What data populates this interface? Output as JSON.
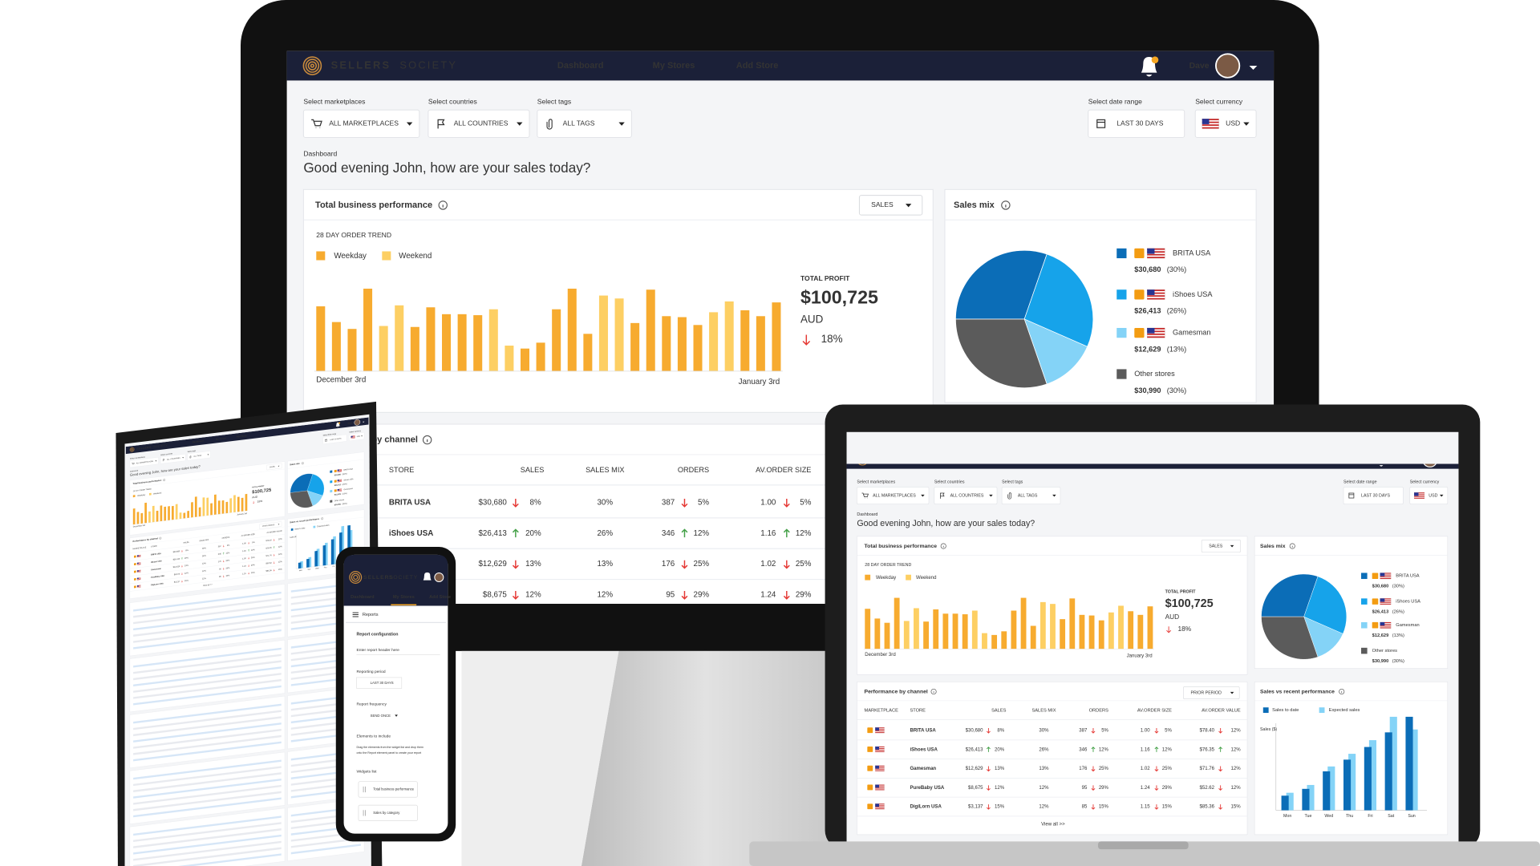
{
  "brand": {
    "name_bold": "SELLERS",
    "name_light": "SOCIETY"
  },
  "nav": {
    "items": [
      "Dashboard",
      "My Stores",
      "Add Store"
    ],
    "user": "Dave"
  },
  "filters": [
    {
      "label": "Select marketplaces",
      "value": "ALL MARKETPLACES"
    },
    {
      "label": "Select countries",
      "value": "ALL COUNTRIES"
    },
    {
      "label": "Select tags",
      "value": "ALL TAGS"
    },
    {
      "label": "Select date range",
      "value": "LAST 30 DAYS"
    },
    {
      "label": "Select currency",
      "value": "USD"
    }
  ],
  "breadcrumb": "Dashboard",
  "greeting": "Good evening John, how are your sales today?",
  "performance": {
    "title": "Total business performance",
    "metric": "SALES",
    "trend_title": "28 DAY ORDER TREND",
    "series": [
      {
        "name": "Weekday",
        "color": "#f7ab2f",
        "values": [
          66,
          50,
          43,
          84,
          null,
          null,
          45,
          65,
          58,
          58,
          57,
          null,
          null,
          23,
          29,
          63,
          84,
          38,
          null,
          null,
          49,
          83,
          56,
          55,
          47,
          null,
          null,
          62,
          56,
          70
        ]
      },
      {
        "name": "Weekend",
        "color": "#fdcf63",
        "values": [
          null,
          null,
          null,
          null,
          46,
          67,
          null,
          null,
          null,
          null,
          null,
          63,
          26,
          null,
          null,
          null,
          null,
          null,
          77,
          74,
          null,
          null,
          null,
          null,
          null,
          60,
          71,
          null,
          null,
          null
        ]
      }
    ],
    "start_label": "December 3rd",
    "end_label": "January 3rd",
    "profit_label": "TOTAL PROFIT",
    "profit": "$100,725",
    "currency": "AUD",
    "change": "18%",
    "trend": "down"
  },
  "sales_mix": {
    "title": "Sales mix",
    "items": [
      {
        "name": "BRITA USA",
        "amount": "$30,680",
        "share": 30,
        "share_label": "(30%)",
        "color": "#0b6db7",
        "marketplace": true
      },
      {
        "name": "iShoes USA",
        "amount": "$26,413",
        "share": 26,
        "share_label": "(26%)",
        "color": "#16a3ea",
        "marketplace": true
      },
      {
        "name": "Gamesman",
        "amount": "$12,629",
        "share": 13,
        "share_label": "(13%)",
        "color": "#84d3f7",
        "marketplace": true
      },
      {
        "name": "Other stores",
        "amount": "$30,990",
        "share": 30,
        "share_label": "(30%)",
        "color": "#5b5b5b",
        "marketplace": false
      }
    ]
  },
  "channel": {
    "title": "Performance by channel",
    "period": "PRIOR PERIOD",
    "columns": [
      "MARKETPLACE",
      "STORE",
      "SALES",
      "SALES MIX",
      "ORDERS",
      "AV.ORDER SIZE",
      "AV.ORDER VALUE"
    ],
    "rows": [
      {
        "store": "BRITA USA",
        "sales": {
          "text": "$30,680",
          "change": "8%",
          "trend": "down"
        },
        "mix": "30%",
        "orders": {
          "text": "387",
          "change": "5%",
          "trend": "down"
        },
        "size": {
          "text": "1.00",
          "change": "5%",
          "trend": "down"
        },
        "value": {
          "text": "$78.40",
          "change": "12%",
          "trend": "down"
        }
      },
      {
        "store": "iShoes USA",
        "sales": {
          "text": "$26,413",
          "change": "20%",
          "trend": "up"
        },
        "mix": "26%",
        "orders": {
          "text": "346",
          "change": "12%",
          "trend": "up"
        },
        "size": {
          "text": "1.16",
          "change": "12%",
          "trend": "up"
        },
        "value": {
          "text": "$76.35",
          "change": "12%",
          "trend": "up"
        }
      },
      {
        "store": "Gamesman",
        "sales": {
          "text": "$12,629",
          "change": "13%",
          "trend": "down"
        },
        "mix": "13%",
        "orders": {
          "text": "176",
          "change": "25%",
          "trend": "down"
        },
        "size": {
          "text": "1.02",
          "change": "25%",
          "trend": "down"
        },
        "value": {
          "text": "$71.76",
          "change": "12%",
          "trend": "down"
        }
      },
      {
        "store": "PureBaby USA",
        "sales": {
          "text": "$8,675",
          "change": "12%",
          "trend": "down"
        },
        "mix": "12%",
        "orders": {
          "text": "95",
          "change": "29%",
          "trend": "down"
        },
        "size": {
          "text": "1.24",
          "change": "29%",
          "trend": "down"
        },
        "value": {
          "text": "$52.62",
          "change": "12%",
          "trend": "down"
        }
      },
      {
        "store": "DigiLorn USA",
        "sales": {
          "text": "$3,137",
          "change": "15%",
          "trend": "down"
        },
        "mix": "12%",
        "orders": {
          "text": "85",
          "change": "15%",
          "trend": "down"
        },
        "size": {
          "text": "1.15",
          "change": "15%",
          "trend": "down"
        },
        "value": {
          "text": "$85.36",
          "change": "15%",
          "trend": "down"
        }
      }
    ],
    "view_all": "View all >>"
  },
  "recent": {
    "title": "Sales vs recent performance",
    "y_label": "Sales ($)",
    "categories": [
      "Mon",
      "Tue",
      "Wed",
      "Thu",
      "Fri",
      "Sat",
      "Sun"
    ],
    "series": [
      {
        "name": "Sales to date",
        "color": "#0b6db7",
        "values": [
          15,
          22,
          40,
          52,
          65,
          80,
          96
        ]
      },
      {
        "name": "Expected sales",
        "color": "#84d3f7",
        "values": [
          18,
          26,
          45,
          58,
          72,
          96,
          83
        ]
      }
    ]
  },
  "phone": {
    "page": "Reports",
    "section": "Report configuration",
    "header_placeholder": "Enter report header here",
    "period_label": "Reporting period",
    "frequency_label": "Report frequency",
    "frequency_value": "SEND ONCE",
    "elements_label": "Elements to include",
    "elements_help": [
      "Drag the elements from the widget list and drop them",
      "onto the Report element panel to create your report"
    ],
    "widgets_label": "Widgets list",
    "widgets": [
      "Sales by category"
    ]
  }
}
